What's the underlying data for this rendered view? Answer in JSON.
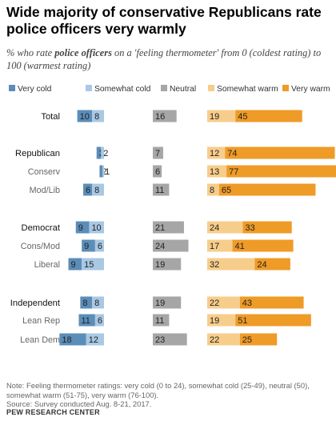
{
  "title": "Wide majority of conservative Republicans rate police officers very warmly",
  "subtitle": {
    "pre": "% who rate ",
    "bold": "police officers",
    "post": " on a 'feeling thermometer' from 0 (coldest rating) to 100 (warmest rating)"
  },
  "note": "Note: Feeling thermometer ratings: very cold (0 to 24), somewhat cold (25-49), neutral (50), somewhat warm (51-75), very warm (76-100).",
  "source": "Source: Survey conducted Aug. 8-21, 2017.",
  "organization": "PEW RESEARCH CENTER",
  "colors": {
    "very_cold": "#5b8db8",
    "somewhat_cold": "#a8c8e4",
    "neutral": "#a6a6a6",
    "somewhat_warm": "#f7cd8b",
    "very_warm": "#ef9b27"
  },
  "chart_data": {
    "type": "bar",
    "orientation": "horizontal",
    "legend_placement": "top",
    "categories": [
      "Total",
      "Republican",
      "Conserv",
      "Mod/Lib",
      "Democrat",
      "Cons/Mod",
      "Liberal",
      "Independent",
      "Lean Rep",
      "Lean Dem"
    ],
    "category_emphasis": [
      "main",
      "main",
      "sub",
      "sub",
      "main",
      "sub",
      "sub",
      "main",
      "sub",
      "sub"
    ],
    "series": [
      {
        "name": "Very cold",
        "values": [
          10,
          3,
          2,
          6,
          9,
          9,
          9,
          8,
          11,
          18
        ]
      },
      {
        "name": "Somewhat cold",
        "values": [
          8,
          2,
          1,
          8,
          10,
          6,
          15,
          8,
          6,
          12
        ]
      },
      {
        "name": "Neutral",
        "values": [
          16,
          7,
          6,
          11,
          21,
          24,
          19,
          19,
          11,
          23
        ]
      },
      {
        "name": "Somewhat warm",
        "values": [
          19,
          12,
          13,
          8,
          24,
          17,
          32,
          22,
          19,
          22
        ]
      },
      {
        "name": "Very warm",
        "values": [
          45,
          74,
          77,
          65,
          33,
          41,
          24,
          43,
          51,
          25
        ]
      }
    ]
  }
}
